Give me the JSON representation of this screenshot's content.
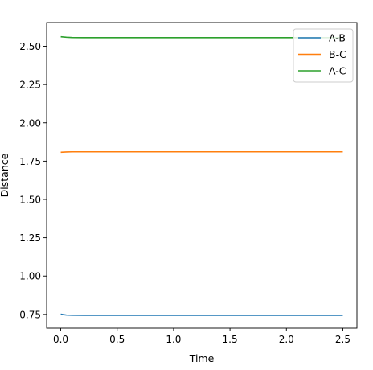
{
  "chart_data": {
    "type": "line",
    "xlabel": "Time",
    "ylabel": "Distance",
    "xlim": [
      -0.125,
      2.625
    ],
    "ylim": [
      0.66,
      2.655
    ],
    "xticks": [
      0.0,
      0.5,
      1.0,
      1.5,
      2.0,
      2.5
    ],
    "xtick_labels": [
      "0.0",
      "0.5",
      "1.0",
      "1.5",
      "2.0",
      "2.5"
    ],
    "yticks": [
      0.75,
      1.0,
      1.25,
      1.5,
      1.75,
      2.0,
      2.25,
      2.5
    ],
    "ytick_labels": [
      "0.75",
      "1.00",
      "1.25",
      "1.50",
      "1.75",
      "2.00",
      "2.25",
      "2.50"
    ],
    "grid": false,
    "legend_position": "top-right",
    "series": [
      {
        "name": "A-B",
        "color": "#1f77b4",
        "x": [
          0.0,
          0.02,
          0.05,
          0.1,
          0.2,
          0.5,
          1.0,
          1.5,
          2.0,
          2.5
        ],
        "y": [
          0.752,
          0.749,
          0.746,
          0.745,
          0.744,
          0.744,
          0.744,
          0.744,
          0.744,
          0.744
        ]
      },
      {
        "name": "B-C",
        "color": "#ff7f0e",
        "x": [
          0.0,
          0.05,
          0.1,
          0.2,
          0.5,
          1.0,
          1.5,
          2.0,
          2.5
        ],
        "y": [
          1.808,
          1.81,
          1.811,
          1.811,
          1.811,
          1.811,
          1.811,
          1.811,
          1.811
        ]
      },
      {
        "name": "A-C",
        "color": "#2ca02c",
        "x": [
          0.0,
          0.05,
          0.1,
          0.2,
          0.5,
          1.0,
          1.5,
          2.0,
          2.5
        ],
        "y": [
          2.562,
          2.559,
          2.557,
          2.556,
          2.556,
          2.556,
          2.556,
          2.556,
          2.556
        ]
      }
    ]
  }
}
